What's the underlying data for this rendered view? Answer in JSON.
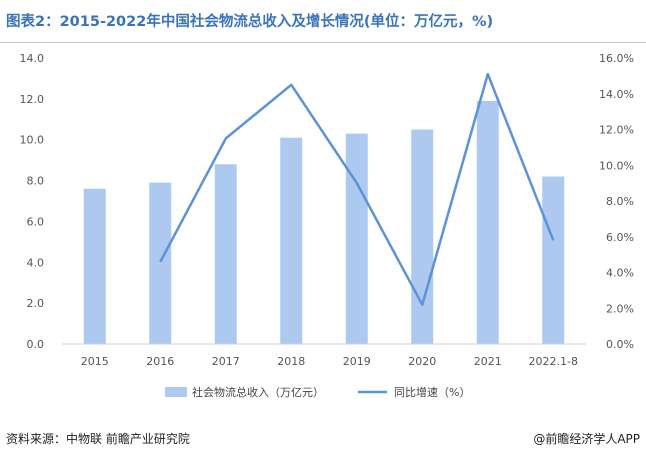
{
  "title": "图表2：2015-2022年中国社会物流总收入及增长情况(单位：万亿元，%)",
  "source": "资料来源：中物联 前瞻产业研究院",
  "brand": "@前瞻经济学人APP",
  "colors": {
    "bar": "#adc9f0",
    "line": "#5b93d6",
    "title": "#3a74b8"
  },
  "chart_data": {
    "type": "bar",
    "categories": [
      "2015",
      "2016",
      "2017",
      "2018",
      "2019",
      "2020",
      "2021",
      "2022.1-8"
    ],
    "series": [
      {
        "name": "社会物流总收入（万亿元）",
        "type": "bar",
        "axis": "left",
        "values": [
          7.6,
          7.9,
          8.8,
          10.1,
          10.3,
          10.5,
          11.9,
          8.2
        ]
      },
      {
        "name": "同比增速（%）",
        "type": "line",
        "axis": "right",
        "values": [
          null,
          4.6,
          11.5,
          14.5,
          9.0,
          2.2,
          15.1,
          5.8
        ]
      }
    ],
    "y_left": {
      "min": 0,
      "max": 14,
      "step": 2,
      "ticks": [
        "0.0",
        "2.0",
        "4.0",
        "6.0",
        "8.0",
        "10.0",
        "12.0",
        "14.0"
      ]
    },
    "y_right": {
      "min": 0,
      "max": 16,
      "step": 2,
      "ticks": [
        "0.0%",
        "2.0%",
        "4.0%",
        "6.0%",
        "8.0%",
        "10.0%",
        "12.0%",
        "14.0%",
        "16.0%"
      ]
    },
    "legend_position": "bottom",
    "grid": false
  }
}
